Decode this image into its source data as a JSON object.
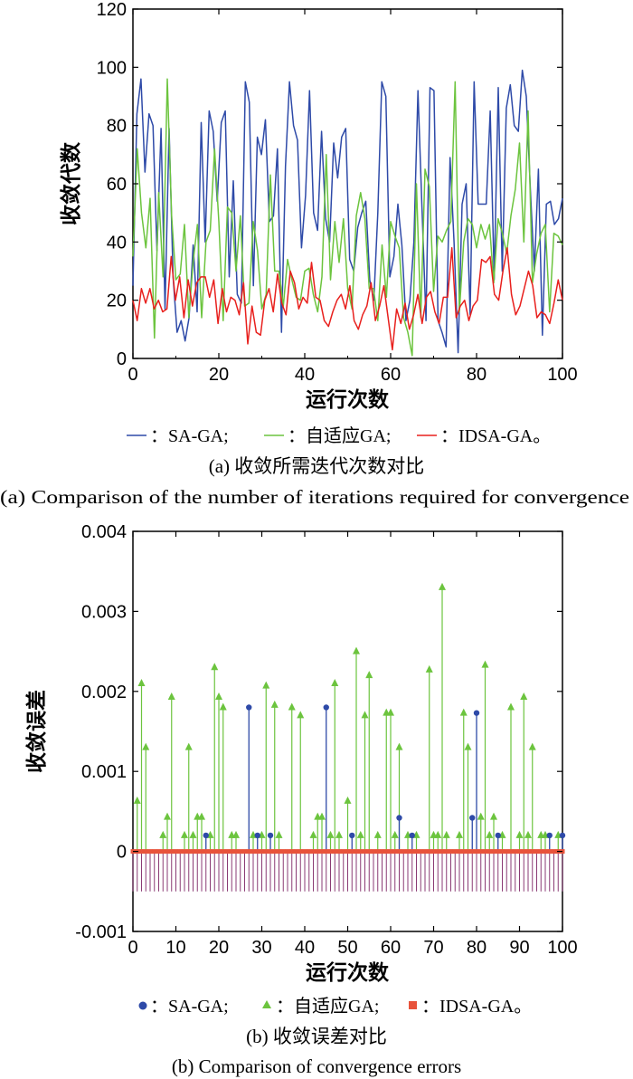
{
  "chart_data": [
    {
      "type": "line",
      "caption_cn": "(a) 收敛所需迭代次数对比",
      "caption_en": "(a) Comparison of the number of iterations required for convergence",
      "xlabel": "运行次数",
      "ylabel": "收敛代数",
      "xlim": [
        0,
        100
      ],
      "ylim": [
        0,
        120
      ],
      "xticks": [
        "0",
        "20",
        "40",
        "60",
        "80",
        "100"
      ],
      "yticks": [
        "0",
        "20",
        "40",
        "60",
        "80",
        "100",
        "120"
      ],
      "series": [
        {
          "name": "SA-GA",
          "legend": "：SA-GA;",
          "color": "#2e4aa8",
          "values": [
            25,
            84,
            96,
            64,
            84,
            80,
            37,
            79,
            17,
            79,
            28,
            9,
            13,
            6,
            14,
            39,
            16,
            81,
            40,
            85,
            78,
            54,
            81,
            85,
            28,
            61,
            22,
            19,
            95,
            88,
            25,
            76,
            70,
            82,
            47,
            49,
            72,
            9,
            66,
            95,
            80,
            75,
            38,
            56,
            92,
            50,
            44,
            78,
            48,
            40,
            74,
            62,
            76,
            79,
            34,
            30,
            45,
            50,
            54,
            27,
            20,
            50,
            95,
            90,
            28,
            35,
            53,
            39,
            13,
            20,
            40,
            92,
            52,
            13,
            93,
            92,
            13,
            9,
            4,
            69,
            40,
            2,
            53,
            60,
            15,
            95,
            53,
            53,
            53,
            85,
            27,
            93,
            30,
            86,
            94,
            80,
            78,
            99,
            90,
            58,
            30,
            65,
            8,
            53,
            54,
            46,
            48,
            55
          ]
        },
        {
          "name": "自适应GA",
          "legend": "：自适应GA;",
          "color": "#6cc43e",
          "values": [
            35,
            72,
            50,
            38,
            55,
            7,
            57,
            28,
            96,
            49,
            27,
            29,
            46,
            14,
            33,
            46,
            14,
            40,
            44,
            72,
            47,
            13,
            52,
            50,
            30,
            49,
            18,
            19,
            47,
            37,
            17,
            22,
            63,
            30,
            30,
            18,
            34,
            27,
            21,
            20,
            30,
            31,
            22,
            16,
            28,
            70,
            27,
            47,
            33,
            48,
            24,
            17,
            49,
            57,
            48,
            24,
            24,
            13,
            39,
            21,
            47,
            42,
            38,
            14,
            9,
            1,
            60,
            14,
            65,
            59,
            23,
            42,
            40,
            44,
            47,
            95,
            16,
            40,
            48,
            46,
            38,
            46,
            41,
            46,
            26,
            48,
            43,
            36,
            49,
            58,
            74,
            40,
            85,
            26,
            36,
            43,
            46,
            16,
            43,
            42,
            39
          ]
        },
        {
          "name": "IDSA-GA",
          "legend": "：IDSA-GA。",
          "color": "#e8201d",
          "values": [
            20,
            13,
            24,
            19,
            24,
            17,
            20,
            16,
            17,
            35,
            20,
            28,
            14,
            27,
            18,
            26,
            28,
            28,
            21,
            27,
            12,
            24,
            16,
            21,
            20,
            15,
            26,
            5,
            18,
            9,
            8,
            20,
            24,
            16,
            29,
            19,
            15,
            30,
            26,
            17,
            21,
            19,
            33,
            21,
            20,
            13,
            11,
            16,
            20,
            22,
            17,
            25,
            13,
            10,
            15,
            18,
            26,
            13,
            18,
            25,
            14,
            3,
            17,
            12,
            19,
            10,
            15,
            22,
            12,
            21,
            23,
            16,
            12,
            21,
            21,
            38,
            14,
            18,
            20,
            13,
            18,
            20,
            34,
            33,
            35,
            22,
            20,
            30,
            38,
            22,
            15,
            18,
            24,
            30,
            25,
            14,
            16,
            15,
            12,
            19,
            27,
            20
          ]
        }
      ]
    },
    {
      "type": "scatter",
      "caption_cn": "(b) 收敛误差对比",
      "caption_en": "(b) Comparison of convergence errors",
      "xlabel": "运行次数",
      "ylabel": "收敛误差",
      "xlim": [
        0,
        100
      ],
      "ylim": [
        -0.001,
        0.004
      ],
      "xticks": [
        "0",
        "10",
        "20",
        "30",
        "40",
        "50",
        "60",
        "70",
        "80",
        "90",
        "100"
      ],
      "yticks": [
        "-0.001",
        "0",
        "0.001",
        "0.002",
        "0.003",
        "0.004"
      ],
      "series": [
        {
          "name": "SA-GA",
          "legend": "：SA-GA;",
          "color": "#2e4aa8",
          "marker": "circle",
          "x": [
            17,
            27,
            29,
            32,
            45,
            51,
            62,
            65,
            79,
            80,
            85,
            97,
            100
          ],
          "y": [
            0.0002,
            0.0018,
            0.0002,
            0.0002,
            0.0018,
            0.0002,
            0.00042,
            0.0002,
            0.00042,
            0.00173,
            0.0002,
            0.0002,
            0.0002
          ]
        },
        {
          "name": "自适应GA",
          "legend": "：自适应GA;",
          "color": "#6cc43e",
          "marker": "triangle",
          "x": [
            1,
            2,
            3,
            7,
            8,
            9,
            12,
            13,
            14,
            15,
            16,
            18,
            19,
            20,
            21,
            23,
            24,
            28,
            30,
            31,
            33,
            34,
            37,
            39,
            42,
            43,
            44,
            46,
            47,
            48,
            50,
            52,
            53,
            54,
            55,
            57,
            59,
            60,
            61,
            62,
            64,
            66,
            69,
            70,
            71,
            72,
            73,
            76,
            77,
            78,
            81,
            82,
            83,
            84,
            86,
            88,
            90,
            91,
            92,
            93,
            95,
            96,
            99
          ],
          "y": [
            0.00063,
            0.0021,
            0.0013,
            0.0002,
            0.00043,
            0.00193,
            0.0002,
            0.0013,
            0.0002,
            0.00043,
            0.00043,
            0.0002,
            0.0023,
            0.00193,
            0.0018,
            0.0002,
            0.0002,
            0.0002,
            0.0002,
            0.00207,
            0.00183,
            0.0002,
            0.0018,
            0.0017,
            0.0002,
            0.00043,
            0.00043,
            0.0002,
            0.0021,
            0.0002,
            0.00063,
            0.0025,
            0.0002,
            0.0017,
            0.0022,
            0.0002,
            0.00173,
            0.00173,
            0.0002,
            0.0013,
            0.0002,
            0.0002,
            0.00227,
            0.0002,
            0.0002,
            0.0033,
            0.0002,
            0.0002,
            0.00173,
            0.0013,
            0.00043,
            0.00233,
            0.0002,
            0.00043,
            0.0002,
            0.0018,
            0.0002,
            0.00193,
            0.0002,
            0.0013,
            0.0002,
            0.0002,
            0.0002
          ]
        },
        {
          "name": "IDSA-GA",
          "legend": "：IDSA-GA。",
          "color": "#e8533b",
          "marker": "square",
          "y_const": 0,
          "stem_to": -0.0005
        }
      ]
    }
  ]
}
